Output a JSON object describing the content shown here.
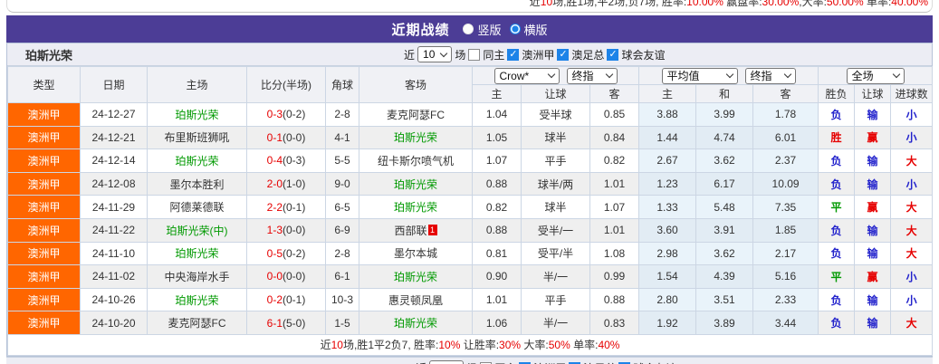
{
  "colors": {
    "accent_purple": "#4c3d96",
    "type_orange": "#ff6600",
    "team_green": "#009900",
    "loss_blue": "#2222cc",
    "win_red": "#e60000",
    "checkbox_blue": "#1d83e8"
  },
  "top_stats_line": {
    "segments": [
      {
        "t": "近",
        "r": false
      },
      {
        "t": "10",
        "r": true
      },
      {
        "t": "场,胜1场,平2场,负7场, 胜率:",
        "r": false
      },
      {
        "t": "10.00%",
        "r": true
      },
      {
        "t": " 赢盘率:",
        "r": false
      },
      {
        "t": "30.00%",
        "r": true
      },
      {
        "t": ",大率:",
        "r": false
      },
      {
        "t": "50.00%",
        "r": true
      },
      {
        "t": " 单率:",
        "r": false
      },
      {
        "t": "40.00%",
        "r": true
      }
    ]
  },
  "header_bar": {
    "title": "近期战绩",
    "radio_vertical": "竖版",
    "radio_horizontal": "横版"
  },
  "team_section": {
    "team": "珀斯光荣",
    "filter": {
      "near": "近",
      "count": "10",
      "suffix": "场",
      "same_home": "同主",
      "leagues": [
        "澳洲甲",
        "澳足总",
        "球会友谊"
      ]
    }
  },
  "table": {
    "selects": {
      "company": "Crow*",
      "final1": "终指",
      "average": "平均值",
      "final2": "终指",
      "scope": "全场"
    },
    "left_headers": [
      "类型",
      "日期",
      "主场",
      "比分(半场)",
      "角球",
      "客场"
    ],
    "sub_headers": [
      "主",
      "让球",
      "客",
      "主",
      "和",
      "客",
      "胜负",
      "让球",
      "进球数"
    ],
    "rows": [
      {
        "type": "澳洲甲",
        "date": "24-12-27",
        "home": "珀斯光荣",
        "home_green": true,
        "ft": "0-3",
        "ht": "(0-2)",
        "corner": "2-8",
        "away": "麦克阿瑟FC",
        "away_green": false,
        "away_badge": "",
        "o1": "1.04",
        "line": "受半球",
        "o2": "0.85",
        "avg_h": "3.88",
        "avg_d": "3.99",
        "avg_a": "1.78",
        "res": [
          "负",
          "b"
        ],
        "han": [
          "输",
          "b"
        ],
        "goal": [
          "小",
          "b"
        ]
      },
      {
        "type": "澳洲甲",
        "date": "24-12-21",
        "home": "布里斯班狮吼",
        "home_green": false,
        "ft": "0-1",
        "ht": "(0-0)",
        "corner": "4-1",
        "away": "珀斯光荣",
        "away_green": true,
        "away_badge": "",
        "o1": "1.05",
        "line": "球半",
        "o2": "0.84",
        "avg_h": "1.44",
        "avg_d": "4.74",
        "avg_a": "6.01",
        "res": [
          "胜",
          "r"
        ],
        "han": [
          "赢",
          "r"
        ],
        "goal": [
          "小",
          "b"
        ]
      },
      {
        "type": "澳洲甲",
        "date": "24-12-14",
        "home": "珀斯光荣",
        "home_green": true,
        "ft": "0-4",
        "ht": "(0-3)",
        "corner": "5-5",
        "away": "纽卡斯尔喷气机",
        "away_green": false,
        "away_badge": "",
        "o1": "1.07",
        "line": "平手",
        "o2": "0.82",
        "avg_h": "2.67",
        "avg_d": "3.62",
        "avg_a": "2.37",
        "res": [
          "负",
          "b"
        ],
        "han": [
          "输",
          "b"
        ],
        "goal": [
          "大",
          "r"
        ]
      },
      {
        "type": "澳洲甲",
        "date": "24-12-08",
        "home": "墨尔本胜利",
        "home_green": false,
        "ft": "2-0",
        "ht": "(1-0)",
        "corner": "9-0",
        "away": "珀斯光荣",
        "away_green": true,
        "away_badge": "",
        "o1": "0.88",
        "line": "球半/两",
        "o2": "1.01",
        "avg_h": "1.23",
        "avg_d": "6.17",
        "avg_a": "10.09",
        "res": [
          "负",
          "b"
        ],
        "han": [
          "输",
          "b"
        ],
        "goal": [
          "小",
          "b"
        ]
      },
      {
        "type": "澳洲甲",
        "date": "24-11-29",
        "home": "阿德莱德联",
        "home_green": false,
        "ft": "2-2",
        "ht": "(0-1)",
        "corner": "6-5",
        "away": "珀斯光荣",
        "away_green": true,
        "away_badge": "",
        "o1": "0.82",
        "line": "球半",
        "o2": "1.07",
        "avg_h": "1.33",
        "avg_d": "5.48",
        "avg_a": "7.35",
        "res": [
          "平",
          "g"
        ],
        "han": [
          "赢",
          "r"
        ],
        "goal": [
          "大",
          "r"
        ]
      },
      {
        "type": "澳洲甲",
        "date": "24-11-22",
        "home": "珀斯光荣(中)",
        "home_green": true,
        "ft": "1-3",
        "ht": "(0-0)",
        "corner": "6-9",
        "away": "西部联",
        "away_green": false,
        "away_badge": "1",
        "o1": "0.88",
        "line": "受半/一",
        "o2": "1.01",
        "avg_h": "3.60",
        "avg_d": "3.91",
        "avg_a": "1.85",
        "res": [
          "负",
          "b"
        ],
        "han": [
          "输",
          "b"
        ],
        "goal": [
          "大",
          "r"
        ]
      },
      {
        "type": "澳洲甲",
        "date": "24-11-10",
        "home": "珀斯光荣",
        "home_green": true,
        "ft": "0-5",
        "ht": "(0-2)",
        "corner": "2-8",
        "away": "墨尔本城",
        "away_green": false,
        "away_badge": "",
        "o1": "0.81",
        "line": "受平/半",
        "o2": "1.08",
        "avg_h": "2.98",
        "avg_d": "3.62",
        "avg_a": "2.17",
        "res": [
          "负",
          "b"
        ],
        "han": [
          "输",
          "b"
        ],
        "goal": [
          "大",
          "r"
        ]
      },
      {
        "type": "澳洲甲",
        "date": "24-11-02",
        "home": "中央海岸水手",
        "home_green": false,
        "ft": "0-0",
        "ht": "(0-0)",
        "corner": "6-1",
        "away": "珀斯光荣",
        "away_green": true,
        "away_badge": "",
        "o1": "0.90",
        "line": "半/一",
        "o2": "0.99",
        "avg_h": "1.54",
        "avg_d": "4.39",
        "avg_a": "5.16",
        "res": [
          "平",
          "g"
        ],
        "han": [
          "赢",
          "r"
        ],
        "goal": [
          "小",
          "b"
        ]
      },
      {
        "type": "澳洲甲",
        "date": "24-10-26",
        "home": "珀斯光荣",
        "home_green": true,
        "ft": "0-2",
        "ht": "(0-1)",
        "corner": "10-3",
        "away": "惠灵顿凤凰",
        "away_green": false,
        "away_badge": "",
        "o1": "1.01",
        "line": "平手",
        "o2": "0.88",
        "avg_h": "2.80",
        "avg_d": "3.51",
        "avg_a": "2.33",
        "res": [
          "负",
          "b"
        ],
        "han": [
          "输",
          "b"
        ],
        "goal": [
          "小",
          "b"
        ]
      },
      {
        "type": "澳洲甲",
        "date": "24-10-20",
        "home": "麦克阿瑟FC",
        "home_green": false,
        "ft": "6-1",
        "ht": "(5-0)",
        "corner": "1-5",
        "away": "珀斯光荣",
        "away_green": true,
        "away_badge": "",
        "o1": "1.06",
        "line": "半/一",
        "o2": "0.83",
        "avg_h": "1.92",
        "avg_d": "3.89",
        "avg_a": "3.44",
        "res": [
          "负",
          "b"
        ],
        "han": [
          "输",
          "b"
        ],
        "goal": [
          "大",
          "r"
        ]
      }
    ],
    "footer_segments": [
      {
        "t": "近",
        "r": false
      },
      {
        "t": "10",
        "r": true
      },
      {
        "t": "场,胜1平2负7, 胜率:",
        "r": false
      },
      {
        "t": "10%",
        "r": true
      },
      {
        "t": " 让胜率:",
        "r": false
      },
      {
        "t": "30%",
        "r": true
      },
      {
        "t": " 大率:",
        "r": false
      },
      {
        "t": "50%",
        "r": true
      },
      {
        "t": " 单率:",
        "r": false
      },
      {
        "t": "40%",
        "r": true
      }
    ]
  }
}
